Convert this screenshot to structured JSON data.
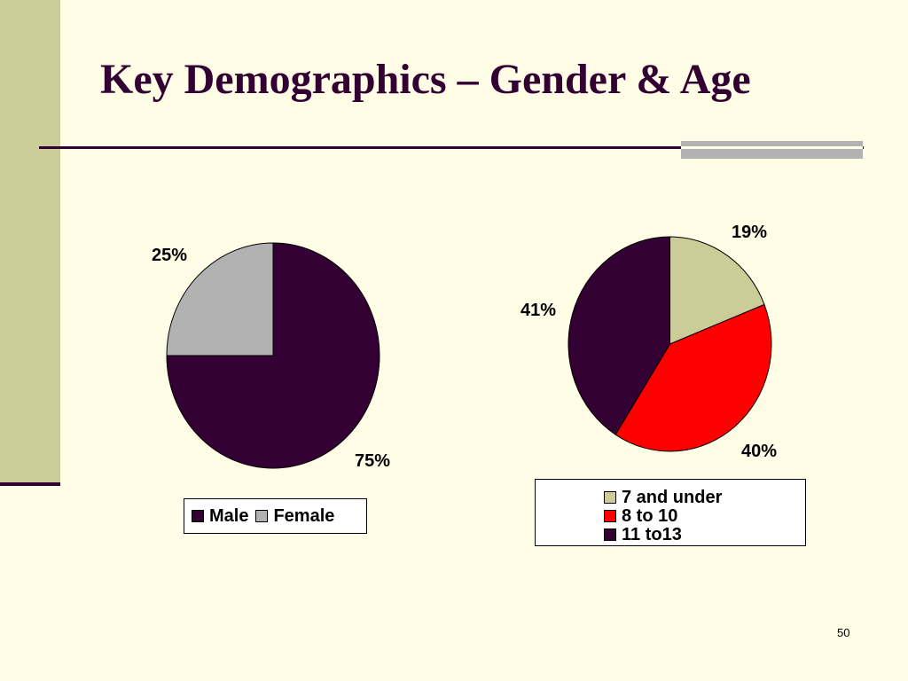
{
  "slide": {
    "title": "Key Demographics – Gender & Age",
    "page_number": "50"
  },
  "colors": {
    "background": "#FFFDE6",
    "sidebar": "#CCCC99",
    "title_text": "#330033",
    "rule": "#330033",
    "rule_accent": "#B2B2B2"
  },
  "chart_data": [
    {
      "type": "pie",
      "title": "",
      "slices": [
        {
          "label": "Male",
          "value": 75,
          "display": "75%",
          "color": "#330033"
        },
        {
          "label": "Female",
          "value": 25,
          "display": "25%",
          "color": "#B2B2B2"
        }
      ],
      "legend_position": "bottom",
      "start_angle_deg": 0,
      "direction": "clockwise"
    },
    {
      "type": "pie",
      "title": "",
      "slices": [
        {
          "label": "7 and under",
          "value": 19,
          "display": "19%",
          "color": "#CCCC99"
        },
        {
          "label": "8 to 10",
          "value": 40,
          "display": "40%",
          "color": "#FF0000"
        },
        {
          "label": "11 to13",
          "value": 41,
          "display": "41%",
          "color": "#330033"
        }
      ],
      "legend_position": "bottom",
      "start_angle_deg": 0,
      "direction": "clockwise"
    }
  ]
}
